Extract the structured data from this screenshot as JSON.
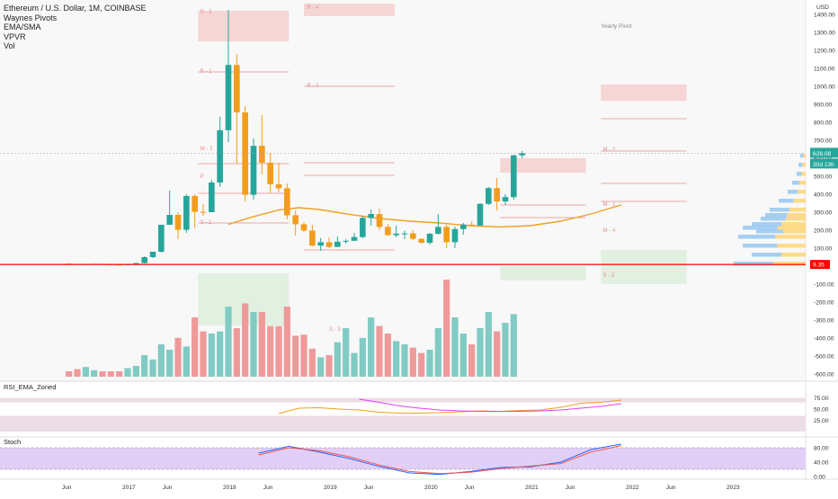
{
  "header": {
    "symbol_line": "Ethereum / U.S. Dollar, 1M, COINBASE",
    "indicators": [
      "Waynes Pivots",
      "EMA/SMA",
      "VPVR",
      "Vol"
    ],
    "currency": "USD"
  },
  "annotations": {
    "yearly_pivot": "Yearly Pivot",
    "last_price": "628.08",
    "countdown": "30d 13h",
    "low_line_price": "9.35",
    "pivot_labels": [
      "R - 2",
      "R - 4",
      "R - 1",
      "R - 3",
      "M - 3",
      "P",
      "M - 2",
      "S - 1",
      "M - 1",
      "S - 2",
      "M - 4",
      "S - 3"
    ]
  },
  "colors": {
    "bull": "#f29d1c",
    "bear": "#26a69a",
    "vol_up": "#80cbc4",
    "vol_down": "#ef9a9a",
    "ema": "#f0a020",
    "support_line": "#ff0000",
    "rsi_line": "#f0a020",
    "rsi_ma": "#e040fb",
    "stoch_k": "#2962ff",
    "stoch_d": "#ef5350",
    "stoch_band": "#e1cff7",
    "rsi_band": "#eddde6"
  },
  "panels": {
    "rsi_title": "RSI_EMA_Zoned",
    "stoch_title": "Stoch",
    "rsi_ticks": [
      "75.00",
      "50.00",
      "25.00"
    ],
    "stoch_ticks": [
      "80.00",
      "40.00",
      "0.00"
    ]
  },
  "chart_data": [
    {
      "type": "candlestick",
      "title": "Ethereum / U.S. Dollar, 1M, COINBASE",
      "ylabel": "USD",
      "y_ticks": [
        "1400.00",
        "1300.00",
        "1200.00",
        "1100.00",
        "1000.00",
        "900.00",
        "800.00",
        "700.00",
        "600.00",
        "500.00",
        "400.00",
        "300.00",
        "200.00",
        "100.00",
        "0.00",
        "-100.00",
        "-200.00",
        "-300.00",
        "-400.00",
        "-500.00",
        "-600.00"
      ],
      "x_ticks": [
        "Jun",
        "2017",
        "Jun",
        "2018",
        "Jun",
        "2019",
        "Jun",
        "2020",
        "Jun",
        "2021",
        "Jun",
        "2022",
        "Jun",
        "2023"
      ],
      "ylim": [
        -620,
        1440
      ],
      "months": [
        "2016-06",
        "2016-07",
        "2016-08",
        "2016-09",
        "2016-10",
        "2016-11",
        "2016-12",
        "2017-01",
        "2017-02",
        "2017-03",
        "2017-04",
        "2017-05",
        "2017-06",
        "2017-07",
        "2017-08",
        "2017-09",
        "2017-10",
        "2017-11",
        "2017-12",
        "2018-01",
        "2018-02",
        "2018-03",
        "2018-04",
        "2018-05",
        "2018-06",
        "2018-07",
        "2018-08",
        "2018-09",
        "2018-10",
        "2018-11",
        "2018-12",
        "2019-01",
        "2019-02",
        "2019-03",
        "2019-04",
        "2019-05",
        "2019-06",
        "2019-07",
        "2019-08",
        "2019-09",
        "2019-10",
        "2019-11",
        "2019-12",
        "2020-01",
        "2020-02",
        "2020-03",
        "2020-04",
        "2020-05",
        "2020-06",
        "2020-07",
        "2020-08",
        "2020-09",
        "2020-10",
        "2020-11",
        "2020-12"
      ],
      "open": [
        14,
        12,
        11,
        12,
        13,
        11,
        9,
        8,
        11,
        17,
        50,
        80,
        230,
        285,
        202,
        390,
        302,
        300,
        465,
        756,
        1119,
        855,
        397,
        669,
        575,
        455,
        433,
        283,
        233,
        198,
        114,
        133,
        107,
        136,
        141,
        162,
        268,
        290,
        218,
        172,
        181,
        182,
        152,
        130,
        180,
        218,
        133,
        206,
        231,
        226,
        346,
        434,
        360,
        384,
        616
      ],
      "high": [
        15,
        14,
        13,
        13,
        14,
        12,
        10,
        11,
        17,
        55,
        80,
        230,
        420,
        300,
        400,
        400,
        345,
        480,
        830,
        1425,
        1180,
        890,
        710,
        840,
        630,
        575,
        460,
        310,
        245,
        230,
        157,
        160,
        165,
        150,
        185,
        280,
        315,
        320,
        235,
        225,
        197,
        200,
        155,
        185,
        290,
        230,
        220,
        240,
        250,
        350,
        440,
        490,
        400,
        620,
        640
      ],
      "low": [
        10,
        9,
        10,
        10,
        10,
        8,
        7,
        8,
        10,
        15,
        45,
        75,
        230,
        150,
        185,
        210,
        280,
        300,
        440,
        690,
        570,
        360,
        370,
        510,
        405,
        410,
        260,
        170,
        190,
        110,
        85,
        100,
        105,
        125,
        140,
        155,
        225,
        200,
        170,
        160,
        150,
        145,
        125,
        120,
        175,
        100,
        100,
        175,
        220,
        225,
        340,
        310,
        340,
        370,
        600
      ],
      "close": [
        12,
        11,
        12,
        13,
        11,
        9,
        8,
        11,
        17,
        50,
        80,
        230,
        285,
        202,
        390,
        302,
        300,
        465,
        756,
        1119,
        855,
        397,
        669,
        575,
        455,
        433,
        283,
        233,
        198,
        114,
        133,
        107,
        136,
        141,
        162,
        268,
        290,
        218,
        172,
        181,
        182,
        152,
        130,
        180,
        218,
        133,
        206,
        231,
        226,
        346,
        434,
        360,
        384,
        616,
        628
      ],
      "ema_sma": [
        null,
        null,
        null,
        null,
        null,
        null,
        null,
        null,
        null,
        null,
        null,
        null,
        null,
        null,
        null,
        null,
        null,
        null,
        null,
        null,
        null,
        null,
        null,
        null,
        null,
        null,
        null,
        null,
        null,
        null,
        null,
        null,
        null,
        null,
        null,
        null,
        null,
        null,
        null,
        null,
        null,
        null,
        null,
        null,
        null,
        null,
        null,
        null,
        null,
        null,
        null,
        null,
        null,
        null,
        null
      ],
      "ema_curve": [
        [
          2018.0,
          232
        ],
        [
          2018.2,
          268
        ],
        [
          2018.5,
          312
        ],
        [
          2018.7,
          325
        ],
        [
          2018.9,
          315
        ],
        [
          2019.2,
          288
        ],
        [
          2019.5,
          265
        ],
        [
          2019.8,
          250
        ],
        [
          2020.1,
          240
        ],
        [
          2020.4,
          225
        ],
        [
          2020.7,
          218
        ],
        [
          2021.0,
          225
        ],
        [
          2021.3,
          250
        ],
        [
          2021.6,
          290
        ],
        [
          2021.9,
          340
        ]
      ],
      "volume": [
        0.05,
        0.07,
        0.09,
        0.06,
        0.05,
        0.05,
        0.05,
        0.08,
        0.1,
        0.2,
        0.16,
        0.3,
        0.25,
        0.36,
        0.28,
        0.55,
        0.42,
        0.4,
        0.42,
        0.65,
        0.45,
        0.68,
        0.6,
        0.6,
        0.47,
        0.47,
        0.65,
        0.38,
        0.39,
        0.26,
        0.18,
        0.2,
        0.32,
        0.45,
        0.22,
        0.36,
        0.55,
        0.47,
        0.4,
        0.33,
        0.3,
        0.27,
        0.22,
        0.25,
        0.45,
        0.9,
        0.55,
        0.4,
        0.3,
        0.45,
        0.6,
        0.42,
        0.5,
        0.58,
        0.0
      ],
      "horizontal_line_value": 9.35,
      "last_price": 628.08
    },
    {
      "type": "line",
      "title": "RSI_EMA_Zoned",
      "ylim": [
        0,
        100
      ],
      "x": [
        2018.5,
        2018.7,
        2018.9,
        2019.1,
        2019.3,
        2019.5,
        2019.7,
        2019.9,
        2020.1,
        2020.3,
        2020.5,
        2020.7,
        2020.9,
        2021.1,
        2021.3,
        2021.5,
        2021.7,
        2021.9
      ],
      "series": [
        {
          "name": "RSI",
          "values": [
            40,
            52,
            53,
            50,
            48,
            43,
            41,
            41,
            42,
            44,
            46,
            45,
            47,
            48,
            54,
            63,
            65,
            70
          ]
        },
        {
          "name": "EMA",
          "values": [
            null,
            null,
            null,
            null,
            72,
            65,
            57,
            52,
            48,
            46,
            45,
            45,
            45,
            46,
            48,
            52,
            56,
            62
          ]
        }
      ]
    },
    {
      "type": "line",
      "title": "Stoch",
      "ylim": [
        0,
        100
      ],
      "x": [
        2018.3,
        2018.6,
        2018.9,
        2019.2,
        2019.5,
        2019.8,
        2020.1,
        2020.4,
        2020.7,
        2021.0,
        2021.3,
        2021.6,
        2021.9
      ],
      "series": [
        {
          "name": "%K",
          "values": [
            65,
            84,
            68,
            50,
            28,
            10,
            6,
            14,
            25,
            27,
            40,
            75,
            90
          ]
        },
        {
          "name": "%D",
          "values": [
            60,
            80,
            72,
            55,
            32,
            14,
            8,
            12,
            22,
            29,
            36,
            68,
            86
          ]
        }
      ]
    }
  ]
}
